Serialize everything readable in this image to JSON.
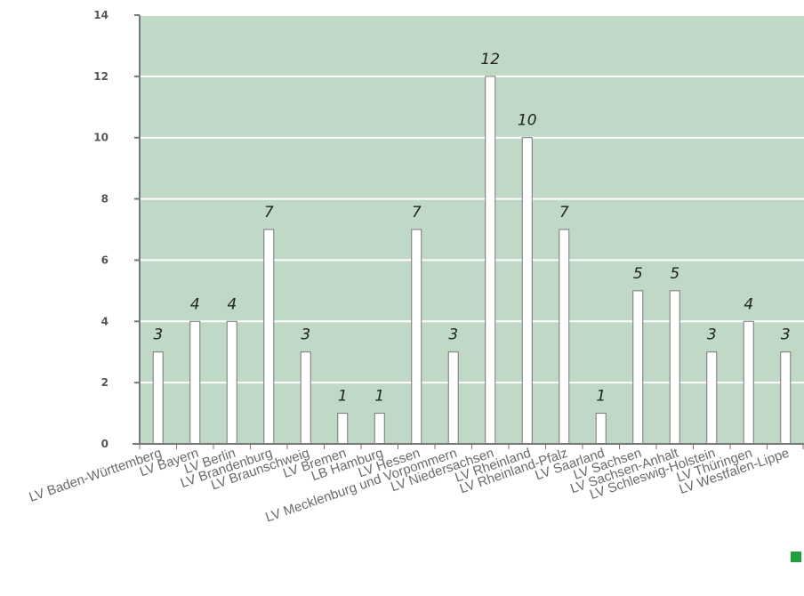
{
  "colors": {
    "plot_background": "#c0d9c6",
    "bar_fill": "#ffffff",
    "bar_stroke": "#777777",
    "axis": "#777777",
    "gridline": "#ffffff",
    "legend": "#1e9e3c"
  },
  "chart_data": {
    "type": "bar",
    "title": "",
    "xlabel": "",
    "ylabel": "",
    "ylim": [
      0,
      14
    ],
    "yticks": [
      0,
      2,
      4,
      6,
      8,
      10,
      12,
      14
    ],
    "grid": true,
    "legend_placement": "bottom-right",
    "categories": [
      "LV Baden-Württemberg",
      "LV Bayern",
      "LV Berlin",
      "LV Brandenburg",
      "LV Braunschweig",
      "LV Bremen",
      "LB Hamburg",
      "LV Hessen",
      "LV Mecklenburg und Vorpommern",
      "LV Niedersachsen",
      "LV Rheinland",
      "LV Rheinland-Pfalz",
      "LV Saarland",
      "LV Sachsen",
      "LV Sachsen-Anhalt",
      "LV Schleswig-Holstein",
      "LV Thüringen",
      "LV Westfalen-Lippe"
    ],
    "values": [
      3,
      4,
      4,
      7,
      3,
      1,
      1,
      7,
      3,
      12,
      10,
      7,
      1,
      5,
      5,
      3,
      4,
      3
    ]
  }
}
